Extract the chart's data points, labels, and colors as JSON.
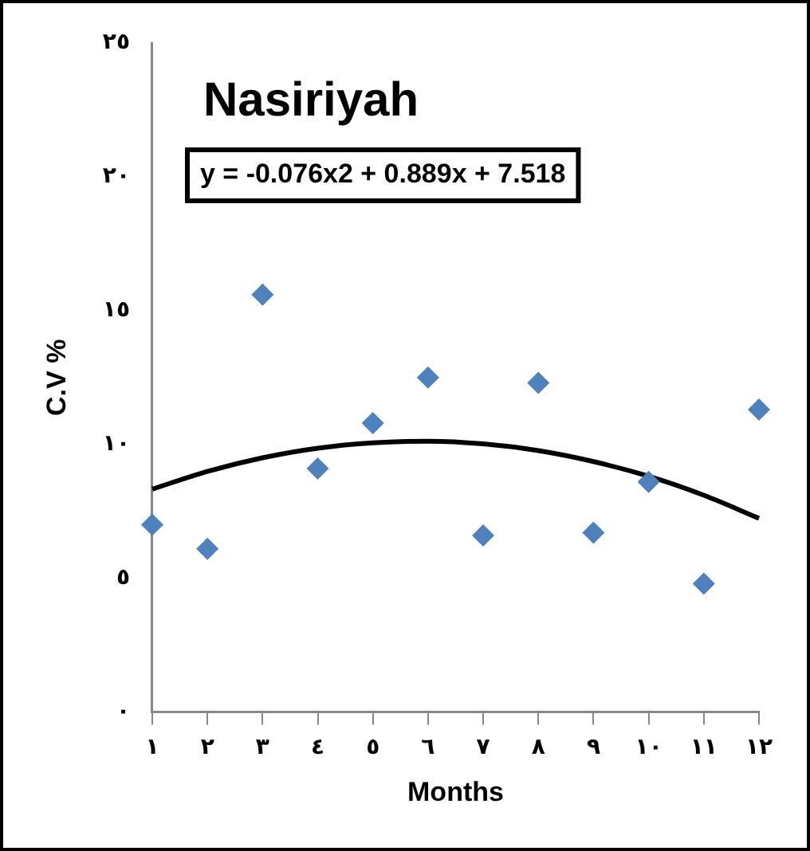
{
  "chart_data": {
    "type": "scatter",
    "title": "Nasiriyah",
    "xlabel": "Months",
    "ylabel": "C.V %",
    "annotations": [
      "y = -0.076x2 + 0.889x + 7.518"
    ],
    "x": [
      1,
      2,
      3,
      4,
      5,
      6,
      7,
      8,
      9,
      10,
      11,
      12
    ],
    "series": [
      {
        "color": "#4f81bd",
        "values": [
          7.0,
          6.1,
          15.6,
          9.1,
          10.8,
          12.5,
          6.6,
          12.3,
          6.7,
          8.6,
          4.8,
          11.3
        ],
        "marker": "diamond"
      },
      {
        "type": "line",
        "color": "#000000",
        "x": [
          1,
          2,
          3,
          4,
          5,
          6,
          7,
          8,
          9,
          10,
          11,
          12
        ],
        "values": [
          8.33,
          8.99,
          9.5,
          9.86,
          10.06,
          10.12,
          10.02,
          9.77,
          9.36,
          8.81,
          8.1,
          7.24
        ],
        "marker": "none"
      }
    ],
    "xlim": [
      1,
      12
    ],
    "xticks": [
      {
        "value": 1,
        "label": "١"
      },
      {
        "value": 2,
        "label": "٢"
      },
      {
        "value": 3,
        "label": "٣"
      },
      {
        "value": 4,
        "label": "٤"
      },
      {
        "value": 5,
        "label": "٥"
      },
      {
        "value": 6,
        "label": "٦"
      },
      {
        "value": 7,
        "label": "٧"
      },
      {
        "value": 8,
        "label": "٨"
      },
      {
        "value": 9,
        "label": "٩"
      },
      {
        "value": 10,
        "label": "١٠"
      },
      {
        "value": 11,
        "label": "١١"
      },
      {
        "value": 12,
        "label": "١٢"
      }
    ],
    "ylim": [
      0,
      25
    ],
    "yticks": [
      {
        "value": 0,
        "label": "٠"
      },
      {
        "value": 5,
        "label": "٥"
      },
      {
        "value": 10,
        "label": "١٠"
      },
      {
        "value": 15,
        "label": "١٥"
      },
      {
        "value": 20,
        "label": "٢٠"
      },
      {
        "value": 25,
        "label": "٢٥"
      }
    ],
    "grid": false,
    "legend": false
  }
}
